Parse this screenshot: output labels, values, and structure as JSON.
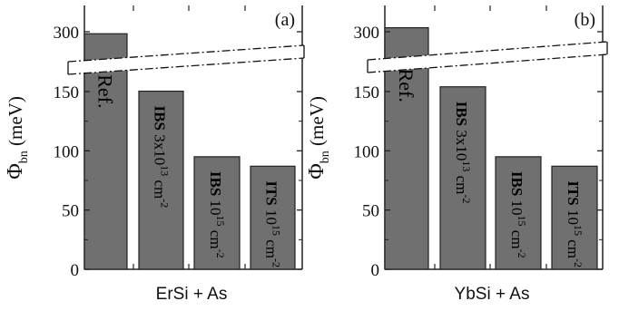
{
  "chart_data": [
    {
      "type": "bar",
      "panel_label": "(a)",
      "xlabel": "ErSi + As",
      "ylabel": "Φ",
      "ylabel_sub": "bn",
      "ylabel_unit": "(meV)",
      "yticks": [
        "0",
        "50",
        "100",
        "150",
        "300"
      ],
      "axis_break": true,
      "bars": [
        {
          "label": "Ref.",
          "value": 295
        },
        {
          "label_bold": "IBS",
          "label_rest": "3x10",
          "label_sup1": "13",
          "label_unit": "cm",
          "label_sup2": "-2",
          "value": 151
        },
        {
          "label_bold": "IBS",
          "label_rest": "10",
          "label_sup1": "15",
          "label_unit": "cm",
          "label_sup2": "-2",
          "value": 95
        },
        {
          "label_bold": "ITS",
          "label_rest": "10",
          "label_sup1": "15",
          "label_unit": "cm",
          "label_sup2": "-2",
          "value": 87
        }
      ]
    },
    {
      "type": "bar",
      "panel_label": "(b)",
      "xlabel": "YbSi + As",
      "ylabel": "Φ",
      "ylabel_sub": "bn",
      "ylabel_unit": "(meV)",
      "yticks": [
        "0",
        "50",
        "100",
        "150",
        "300"
      ],
      "axis_break": true,
      "bars": [
        {
          "label": "Ref.",
          "value": 310
        },
        {
          "label_bold": "IBS",
          "label_rest": "3x10",
          "label_sup1": "13",
          "label_unit": "cm",
          "label_sup2": "-2",
          "value": 162
        },
        {
          "label_bold": "IBS",
          "label_rest": "10",
          "label_sup1": "15",
          "label_unit": "cm",
          "label_sup2": "-2",
          "value": 95
        },
        {
          "label_bold": "ITS",
          "label_rest": "10",
          "label_sup1": "15",
          "label_unit": "cm",
          "label_sup2": "-2",
          "value": 87
        }
      ]
    }
  ]
}
